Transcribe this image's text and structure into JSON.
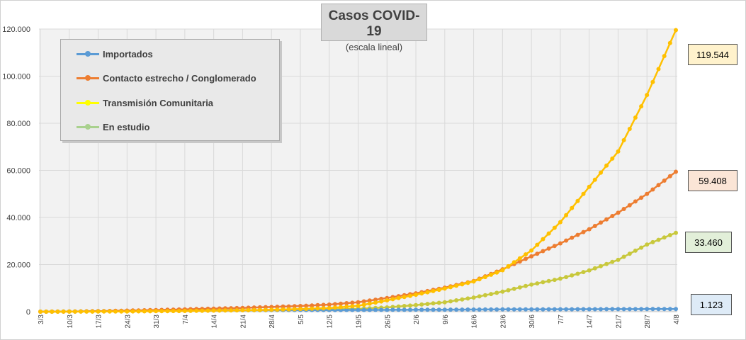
{
  "title": "Casos COVID-19",
  "subtitle": "(escala lineal)",
  "callouts": {
    "transmision": "119.544",
    "contacto": "59.408",
    "estudio": "33.460",
    "importados": "1.123"
  },
  "colors": {
    "importados": "#5b9bd5",
    "contacto": "#ed7d31",
    "transmision": "#ffc000",
    "transmision_legend": "#ffff00",
    "estudio": "#c8c83c",
    "estudio_legend": "#a9d18e"
  },
  "chart_data": {
    "type": "line",
    "title": "Casos COVID-19",
    "subtitle": "(escala lineal)",
    "xlabel": "",
    "ylabel": "",
    "ylim": [
      0,
      120000
    ],
    "y_ticks": [
      "0",
      "20.000",
      "40.000",
      "60.000",
      "80.000",
      "100.000",
      "120.000"
    ],
    "y_tick_values": [
      0,
      20000,
      40000,
      60000,
      80000,
      100000,
      120000
    ],
    "categories": [
      "3/3",
      "10/3",
      "17/3",
      "24/3",
      "31/3",
      "7/4",
      "14/4",
      "21/4",
      "28/4",
      "5/5",
      "12/5",
      "19/5",
      "26/5",
      "2/6",
      "9/6",
      "16/6",
      "23/6",
      "30/6",
      "7/7",
      "14/7",
      "21/7",
      "28/7",
      "4/8"
    ],
    "grid": true,
    "legend_position": "top-left",
    "series": [
      {
        "name": "Importados",
        "values": [
          0,
          60,
          200,
          380,
          480,
          560,
          600,
          630,
          650,
          670,
          690,
          720,
          760,
          800,
          850,
          900,
          950,
          990,
          1020,
          1050,
          1080,
          1100,
          1123
        ]
      },
      {
        "name": "Contacto estrecho / Conglomerado",
        "values": [
          0,
          50,
          200,
          450,
          700,
          1000,
          1300,
          1600,
          2000,
          2400,
          3000,
          4000,
          5800,
          7800,
          10200,
          13000,
          18000,
          23500,
          29000,
          35000,
          42000,
          50000,
          59408
        ]
      },
      {
        "name": "Transmisión Comunitaria",
        "values": [
          0,
          20,
          50,
          100,
          200,
          300,
          450,
          600,
          800,
          1100,
          1500,
          2500,
          4800,
          7200,
          9800,
          12800,
          17600,
          26000,
          38000,
          53000,
          68000,
          92000,
          119544
        ]
      },
      {
        "name": "En estudio",
        "values": [
          0,
          30,
          100,
          200,
          300,
          400,
          500,
          600,
          700,
          800,
          1000,
          1200,
          1800,
          2800,
          4000,
          6000,
          8500,
          11500,
          14000,
          17500,
          22000,
          28500,
          33460
        ]
      }
    ]
  }
}
